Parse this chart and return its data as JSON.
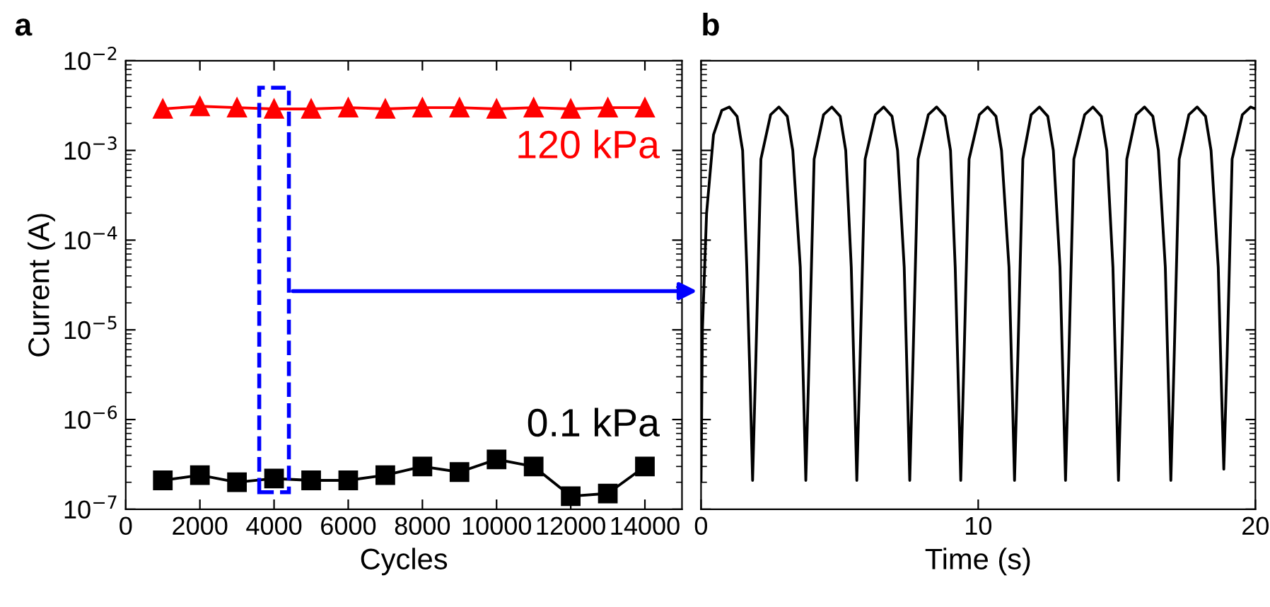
{
  "chart_data": [
    {
      "type": "line",
      "title": "a",
      "xlabel": "Cycles",
      "ylabel": "Current (A)",
      "log": "y",
      "marker": "circle",
      "x": [
        1000,
        2000,
        3000,
        4000,
        5000,
        6000,
        7000,
        8000,
        9000,
        10000,
        11000,
        12000,
        13000,
        14000
      ],
      "series": [
        {
          "color": "#ff0000",
          "marker": "triangle",
          "values": [
            0.0029,
            0.0031,
            0.003,
            0.0029,
            0.0029,
            0.003,
            0.0029,
            0.003,
            0.003,
            0.0029,
            0.003,
            0.0029,
            0.003,
            0.003
          ]
        },
        {
          "color": "#000000",
          "marker": "square",
          "values": [
            2.1e-07,
            2.4e-07,
            2e-07,
            2.2e-07,
            2.1e-07,
            2.1e-07,
            2.4e-07,
            3e-07,
            2.6e-07,
            3.6e-07,
            3e-07,
            1.4e-07,
            1.5e-07,
            3e-07
          ]
        }
      ],
      "annotations": [
        "120 kPa",
        "0.1 kPa"
      ],
      "xlim": [
        0,
        15000
      ],
      "xticks": [
        0,
        2000,
        4000,
        6000,
        8000,
        10000,
        12000,
        14000
      ],
      "ylim": [
        1e-07,
        0.01
      ],
      "yticks": [
        {
          "value": 1e-07,
          "label": "10$^{−7}$"
        },
        {
          "value": 1e-06,
          "label": "10$^{−6}$"
        },
        {
          "value": 1e-05,
          "label": "10$^{−5}$"
        },
        {
          "value": 0.0001,
          "label": "10$^{−4}$"
        },
        {
          "value": 0.001,
          "label": "10$^{−3}$"
        },
        {
          "value": 0.01,
          "label": "10$^{−2}$"
        }
      ],
      "grid": false
    },
    {
      "type": "line",
      "title": "b",
      "xlabel": "Time (s)",
      "log": "y",
      "tick_labels": "x",
      "marker": "none",
      "series": [
        {
          "color": "#000000",
          "x": [
            0,
            0.05,
            0.2,
            0.45,
            0.75,
            1.02,
            1.3,
            1.5,
            1.65,
            1.78,
            1.86,
            1.98,
            2.16,
            2.51,
            2.81,
            3.11,
            3.31,
            3.58,
            3.7,
            3.78,
            3.9,
            4.08,
            4.42,
            4.72,
            5.02,
            5.22,
            5.42,
            5.54,
            5.62,
            5.74,
            5.92,
            6.29,
            6.59,
            6.89,
            7.09,
            7.33,
            7.45,
            7.53,
            7.65,
            7.83,
            8.2,
            8.5,
            8.8,
            9.0,
            9.17,
            9.29,
            9.37,
            9.49,
            9.67,
            10.04,
            10.34,
            10.64,
            10.84,
            11.11,
            11.23,
            11.31,
            11.43,
            11.61,
            11.91,
            12.21,
            12.51,
            12.71,
            12.95,
            13.07,
            13.15,
            13.27,
            13.45,
            13.84,
            14.14,
            14.44,
            14.64,
            14.86,
            14.98,
            15.06,
            15.18,
            15.36,
            15.7,
            16.0,
            16.3,
            16.5,
            16.75,
            16.87,
            16.95,
            17.07,
            17.25,
            17.6,
            17.9,
            18.2,
            18.4,
            18.66,
            18.78,
            18.86,
            18.98,
            19.16,
            19.53,
            19.83,
            20.0
          ],
          "values": [
            2.1e-07,
            1e-05,
            0.0002,
            0.0015,
            0.0028,
            0.00305,
            0.0024,
            0.001,
            5e-05,
            2e-06,
            2.1e-07,
            5e-06,
            0.0008,
            0.0025,
            0.00305,
            0.0024,
            0.001,
            5e-05,
            2e-06,
            2.1e-07,
            5e-06,
            0.0008,
            0.0025,
            0.00305,
            0.0024,
            0.001,
            5e-05,
            2e-06,
            2.1e-07,
            5e-06,
            0.0008,
            0.0025,
            0.00305,
            0.0024,
            0.001,
            5e-05,
            2e-06,
            2.1e-07,
            5e-06,
            0.0008,
            0.0025,
            0.00305,
            0.0024,
            0.001,
            5e-05,
            2e-06,
            2.1e-07,
            5e-06,
            0.0008,
            0.0025,
            0.00305,
            0.0024,
            0.001,
            5e-05,
            2e-06,
            2.1e-07,
            5e-06,
            0.0008,
            0.0025,
            0.00305,
            0.0024,
            0.001,
            5e-05,
            2e-06,
            2.1e-07,
            5e-06,
            0.0008,
            0.0025,
            0.00305,
            0.0024,
            0.001,
            5e-05,
            2e-06,
            2.1e-07,
            5e-06,
            0.0008,
            0.0025,
            0.00305,
            0.0024,
            0.001,
            5e-05,
            2e-06,
            2.1e-07,
            5e-06,
            0.0008,
            0.0025,
            0.00305,
            0.0024,
            0.001,
            5e-05,
            2e-06,
            2.8e-07,
            5e-06,
            0.0008,
            0.0025,
            0.00305,
            0.0029
          ]
        }
      ],
      "xlim": [
        0,
        20
      ],
      "xticks": [
        0,
        10,
        20
      ],
      "ylim": [
        1e-07,
        0.01
      ],
      "grid": false
    }
  ]
}
